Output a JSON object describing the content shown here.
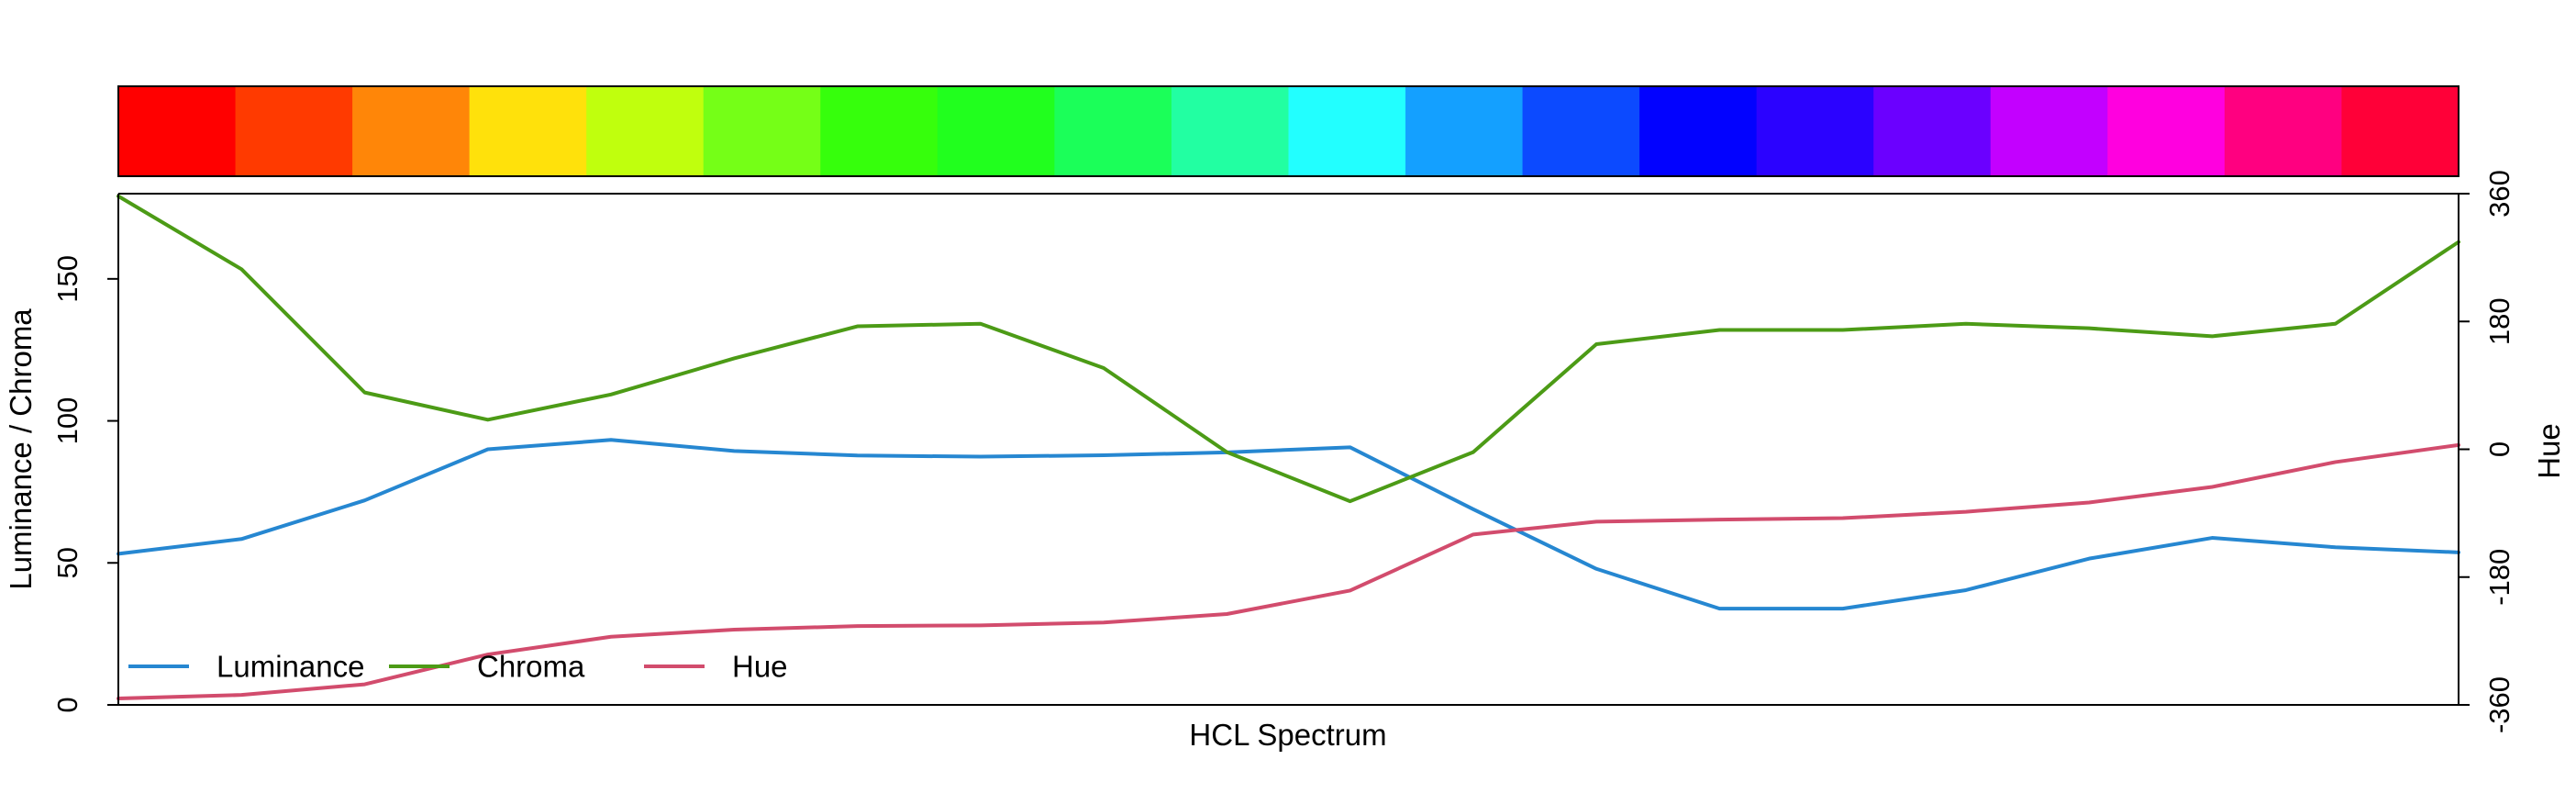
{
  "chart_data": {
    "type": "line",
    "xlabel": "HCL Spectrum",
    "ylabel": "Luminance / Chroma",
    "y2label": "Hue",
    "ylim": [
      0,
      180
    ],
    "y2lim": [
      -360,
      360
    ],
    "yticks": [
      {
        "value": 0,
        "label": "0"
      },
      {
        "value": 50,
        "label": "50"
      },
      {
        "value": 100,
        "label": "100"
      },
      {
        "value": 150,
        "label": "150"
      }
    ],
    "y2ticks": [
      {
        "value": -360,
        "label": "-360"
      },
      {
        "value": -180,
        "label": "-180"
      },
      {
        "value": 0,
        "label": "0"
      },
      {
        "value": 180,
        "label": "180"
      },
      {
        "value": 360,
        "label": "360"
      }
    ],
    "swatches": [
      "#FF0000",
      "#FF3A00",
      "#FF8608",
      "#FFE10B",
      "#C0FF0D",
      "#75FF17",
      "#36FF0C",
      "#21FF1E",
      "#1BFF59",
      "#22FFA2",
      "#22FFFF",
      "#14A0FF",
      "#0C4AFF",
      "#0202FF",
      "#2B02FF",
      "#6B00FF",
      "#C300FF",
      "#FF00DF",
      "#FF0080",
      "#FF0038"
    ],
    "series": [
      {
        "name": "Luminance",
        "color": "#2687D1",
        "axis": "left",
        "values": [
          53.2,
          58.4,
          72.0,
          90.0,
          93.3,
          89.4,
          87.8,
          87.4,
          87.9,
          88.9,
          90.7,
          68.9,
          47.9,
          33.9,
          33.9,
          40.4,
          51.5,
          58.8,
          55.5,
          53.7
        ]
      },
      {
        "name": "Chroma",
        "color": "#4C9B16",
        "axis": "left",
        "values": [
          179.1,
          153.4,
          110.0,
          100.4,
          109.3,
          122.0,
          133.3,
          134.2,
          118.6,
          89.0,
          71.7,
          89.0,
          127.0,
          132.0,
          132.0,
          134.2,
          132.6,
          129.8,
          134.2,
          163.0
        ]
      },
      {
        "name": "Hue",
        "color": "#D24C6D",
        "axis": "right",
        "values": [
          -351.0,
          -346.0,
          -331.0,
          -289.0,
          -264.0,
          -254.0,
          -249.0,
          -248.0,
          -244.0,
          -232.0,
          -199.0,
          -120.0,
          -102.0,
          -99.0,
          -97.0,
          -88.0,
          -75.0,
          -53.0,
          -18.0,
          6.0
        ]
      }
    ],
    "legend_position": "bottom-left"
  }
}
